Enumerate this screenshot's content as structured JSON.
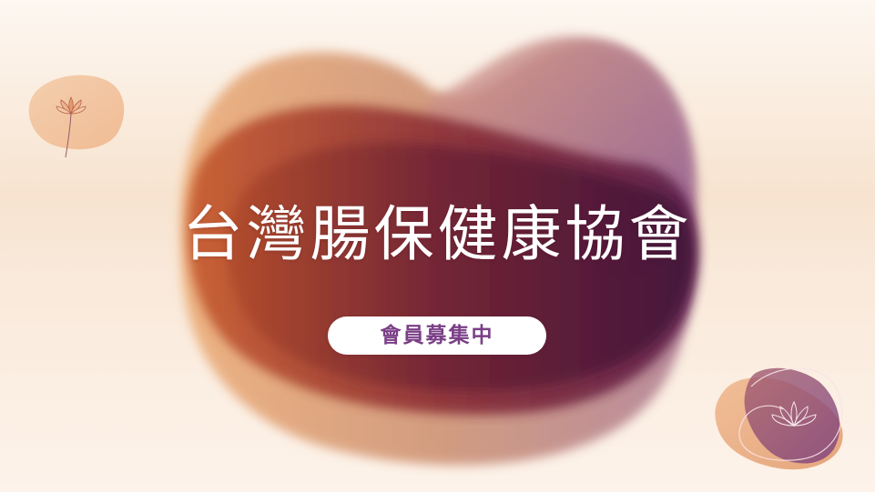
{
  "title": "台灣腸保健康協會",
  "badge": "會員募集中",
  "colors": {
    "background": "#f7e3cf",
    "blob_orange": "#e48a4a",
    "blob_dark_purple": "#4a1538",
    "blob_lavender": "#a77bb0",
    "badge_text": "#7a3f86",
    "title_text": "#ffffff"
  },
  "icons": [
    "lotus-flower-icon",
    "lotus-outline-icon"
  ]
}
